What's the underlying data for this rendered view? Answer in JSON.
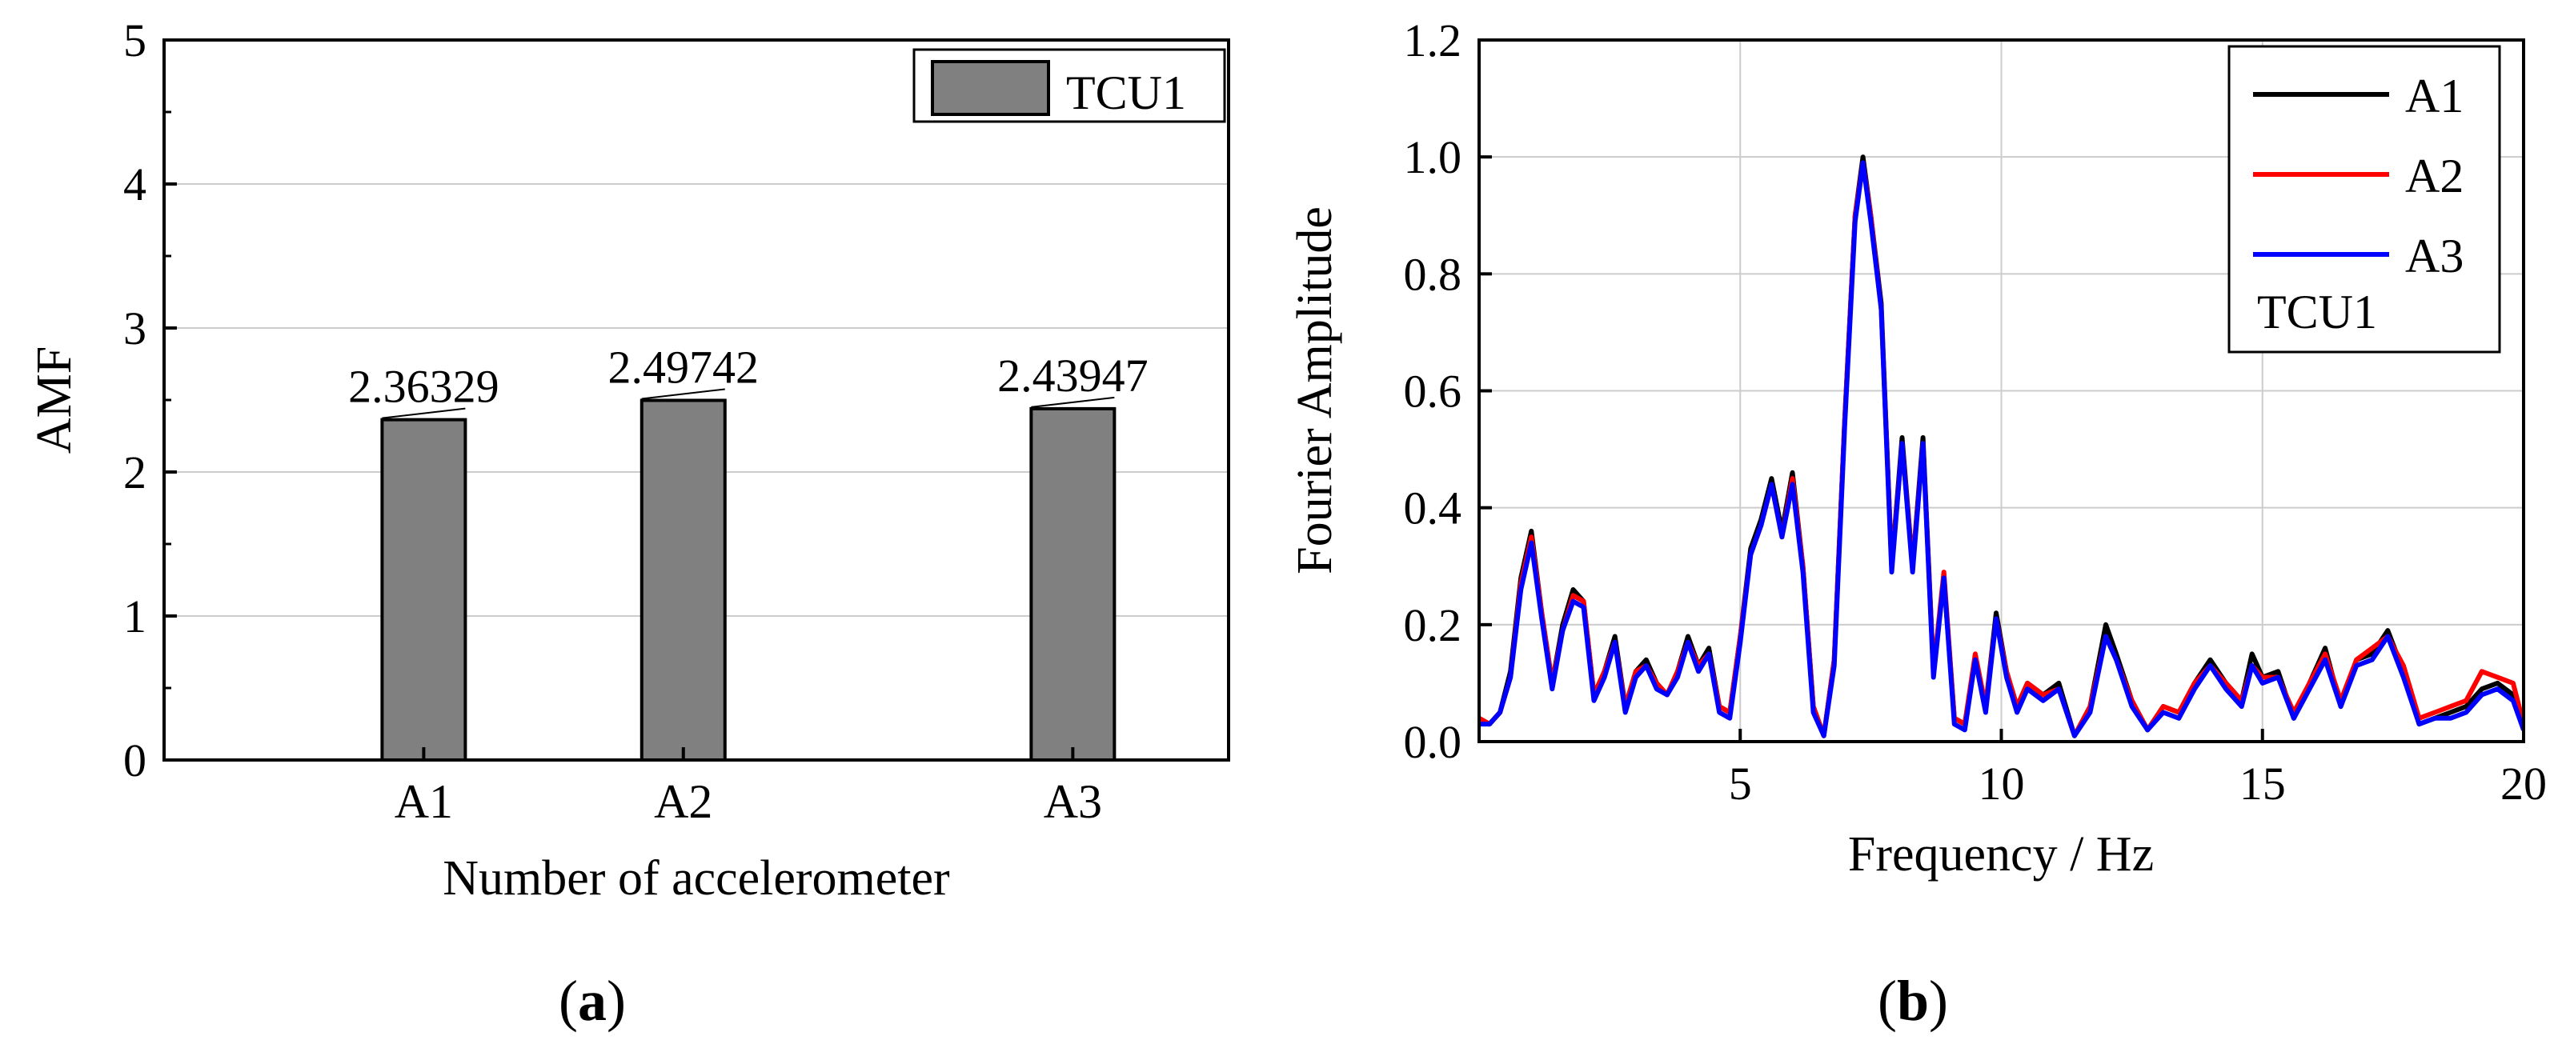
{
  "chart_data": [
    {
      "type": "bar",
      "panel_label": "a",
      "categories": [
        "A1",
        "A2",
        "A3"
      ],
      "category_x": [
        1,
        2,
        3.5
      ],
      "values": [
        2.36329,
        2.49742,
        2.43947
      ],
      "value_labels": [
        "2.36329",
        "2.49742",
        "2.43947"
      ],
      "xlabel": "Number of accelerometer",
      "ylabel": "AMF",
      "xlim": [
        0,
        4.1
      ],
      "ylim": [
        0,
        5
      ],
      "yticks": [
        "0",
        "1",
        "2",
        "3",
        "4",
        "5"
      ],
      "grid": true,
      "legend": {
        "position": "top-right",
        "entries": [
          "TCU1"
        ]
      },
      "colors": {
        "bar": "#808080",
        "grid": "#cccccc",
        "axis": "#000000"
      }
    },
    {
      "type": "line",
      "panel_label": "b",
      "xlabel": "Frequency / Hz",
      "ylabel": "Fourier Amplitude",
      "xlim": [
        0,
        20
      ],
      "ylim": [
        0,
        1.2
      ],
      "xticks": [
        "5",
        "10",
        "15",
        "20"
      ],
      "yticks": [
        "0.0",
        "0.2",
        "0.4",
        "0.6",
        "0.8",
        "1.0",
        "1.2"
      ],
      "grid": true,
      "legend": {
        "position": "top-right",
        "entries": [
          "A1",
          "A2",
          "A3"
        ],
        "note": "TCU1"
      },
      "series": [
        {
          "name": "A1",
          "color": "#000000",
          "x": [
            0.0,
            0.2,
            0.4,
            0.6,
            0.8,
            1.0,
            1.2,
            1.4,
            1.6,
            1.8,
            2.0,
            2.2,
            2.4,
            2.6,
            2.8,
            3.0,
            3.2,
            3.4,
            3.6,
            3.8,
            4.0,
            4.2,
            4.4,
            4.6,
            4.8,
            5.0,
            5.2,
            5.4,
            5.6,
            5.8,
            6.0,
            6.2,
            6.4,
            6.6,
            6.8,
            7.0,
            7.2,
            7.35,
            7.5,
            7.7,
            7.9,
            8.1,
            8.3,
            8.5,
            8.7,
            8.9,
            9.1,
            9.3,
            9.5,
            9.7,
            9.9,
            10.1,
            10.3,
            10.5,
            10.8,
            11.1,
            11.4,
            11.7,
            12.0,
            12.2,
            12.5,
            12.8,
            13.1,
            13.4,
            13.7,
            14.0,
            14.3,
            14.6,
            14.8,
            15.0,
            15.3,
            15.6,
            15.9,
            16.2,
            16.5,
            16.8,
            17.1,
            17.4,
            17.7,
            18.0,
            18.3,
            18.6,
            18.9,
            19.2,
            19.5,
            19.8,
            20.0
          ],
          "y": [
            0.04,
            0.03,
            0.05,
            0.12,
            0.28,
            0.36,
            0.22,
            0.1,
            0.2,
            0.26,
            0.24,
            0.08,
            0.12,
            0.18,
            0.06,
            0.12,
            0.14,
            0.1,
            0.08,
            0.12,
            0.18,
            0.13,
            0.16,
            0.06,
            0.05,
            0.18,
            0.33,
            0.38,
            0.45,
            0.36,
            0.46,
            0.3,
            0.06,
            0.01,
            0.14,
            0.55,
            0.9,
            1.0,
            0.9,
            0.75,
            0.3,
            0.52,
            0.3,
            0.52,
            0.12,
            0.28,
            0.04,
            0.03,
            0.14,
            0.06,
            0.22,
            0.12,
            0.06,
            0.1,
            0.08,
            0.1,
            0.01,
            0.06,
            0.2,
            0.15,
            0.07,
            0.02,
            0.06,
            0.05,
            0.1,
            0.14,
            0.1,
            0.07,
            0.15,
            0.11,
            0.12,
            0.04,
            0.1,
            0.16,
            0.06,
            0.14,
            0.15,
            0.19,
            0.12,
            0.03,
            0.04,
            0.05,
            0.06,
            0.09,
            0.1,
            0.08,
            0.02
          ]
        },
        {
          "name": "A2",
          "color": "#ff0000",
          "x": [
            0.0,
            0.2,
            0.4,
            0.6,
            0.8,
            1.0,
            1.2,
            1.4,
            1.6,
            1.8,
            2.0,
            2.2,
            2.4,
            2.6,
            2.8,
            3.0,
            3.2,
            3.4,
            3.6,
            3.8,
            4.0,
            4.2,
            4.4,
            4.6,
            4.8,
            5.0,
            5.2,
            5.4,
            5.6,
            5.8,
            6.0,
            6.2,
            6.4,
            6.6,
            6.8,
            7.0,
            7.2,
            7.35,
            7.5,
            7.7,
            7.9,
            8.1,
            8.3,
            8.5,
            8.7,
            8.9,
            9.1,
            9.3,
            9.5,
            9.7,
            9.9,
            10.1,
            10.3,
            10.5,
            10.8,
            11.1,
            11.4,
            11.7,
            12.0,
            12.2,
            12.5,
            12.8,
            13.1,
            13.4,
            13.7,
            14.0,
            14.3,
            14.6,
            14.8,
            15.0,
            15.3,
            15.6,
            15.9,
            16.2,
            16.5,
            16.8,
            17.1,
            17.4,
            17.7,
            18.0,
            18.3,
            18.6,
            18.9,
            19.2,
            19.5,
            19.8,
            20.0
          ],
          "y": [
            0.04,
            0.03,
            0.05,
            0.11,
            0.27,
            0.35,
            0.22,
            0.1,
            0.19,
            0.25,
            0.24,
            0.08,
            0.12,
            0.17,
            0.06,
            0.12,
            0.13,
            0.1,
            0.08,
            0.12,
            0.17,
            0.13,
            0.15,
            0.06,
            0.05,
            0.18,
            0.32,
            0.37,
            0.44,
            0.35,
            0.45,
            0.3,
            0.06,
            0.01,
            0.14,
            0.55,
            0.9,
            0.99,
            0.9,
            0.74,
            0.3,
            0.51,
            0.3,
            0.51,
            0.12,
            0.29,
            0.04,
            0.03,
            0.15,
            0.06,
            0.21,
            0.12,
            0.06,
            0.1,
            0.08,
            0.09,
            0.01,
            0.06,
            0.18,
            0.14,
            0.07,
            0.02,
            0.06,
            0.05,
            0.1,
            0.13,
            0.1,
            0.07,
            0.13,
            0.11,
            0.11,
            0.05,
            0.1,
            0.15,
            0.07,
            0.14,
            0.16,
            0.18,
            0.13,
            0.04,
            0.05,
            0.06,
            0.07,
            0.12,
            0.11,
            0.1,
            0.03
          ]
        },
        {
          "name": "A3",
          "color": "#0000ff",
          "x": [
            0.0,
            0.2,
            0.4,
            0.6,
            0.8,
            1.0,
            1.2,
            1.4,
            1.6,
            1.8,
            2.0,
            2.2,
            2.4,
            2.6,
            2.8,
            3.0,
            3.2,
            3.4,
            3.6,
            3.8,
            4.0,
            4.2,
            4.4,
            4.6,
            4.8,
            5.0,
            5.2,
            5.4,
            5.6,
            5.8,
            6.0,
            6.2,
            6.4,
            6.6,
            6.8,
            7.0,
            7.2,
            7.35,
            7.5,
            7.7,
            7.9,
            8.1,
            8.3,
            8.5,
            8.7,
            8.9,
            9.1,
            9.3,
            9.5,
            9.7,
            9.9,
            10.1,
            10.3,
            10.5,
            10.8,
            11.1,
            11.4,
            11.7,
            12.0,
            12.2,
            12.5,
            12.8,
            13.1,
            13.4,
            13.7,
            14.0,
            14.3,
            14.6,
            14.8,
            15.0,
            15.3,
            15.6,
            15.9,
            16.2,
            16.5,
            16.8,
            17.1,
            17.4,
            17.7,
            18.0,
            18.3,
            18.6,
            18.9,
            19.2,
            19.5,
            19.8,
            20.0
          ],
          "y": [
            0.03,
            0.03,
            0.05,
            0.11,
            0.26,
            0.34,
            0.21,
            0.09,
            0.19,
            0.24,
            0.23,
            0.07,
            0.11,
            0.17,
            0.05,
            0.11,
            0.13,
            0.09,
            0.08,
            0.11,
            0.17,
            0.12,
            0.15,
            0.05,
            0.04,
            0.17,
            0.32,
            0.37,
            0.44,
            0.35,
            0.44,
            0.29,
            0.05,
            0.01,
            0.13,
            0.54,
            0.89,
            0.99,
            0.89,
            0.74,
            0.29,
            0.51,
            0.29,
            0.51,
            0.11,
            0.28,
            0.03,
            0.02,
            0.14,
            0.05,
            0.21,
            0.11,
            0.05,
            0.09,
            0.07,
            0.09,
            0.01,
            0.05,
            0.18,
            0.14,
            0.06,
            0.02,
            0.05,
            0.04,
            0.09,
            0.13,
            0.09,
            0.06,
            0.13,
            0.1,
            0.11,
            0.04,
            0.09,
            0.14,
            0.06,
            0.13,
            0.14,
            0.18,
            0.11,
            0.03,
            0.04,
            0.04,
            0.05,
            0.08,
            0.09,
            0.07,
            0.02
          ]
        }
      ]
    }
  ]
}
